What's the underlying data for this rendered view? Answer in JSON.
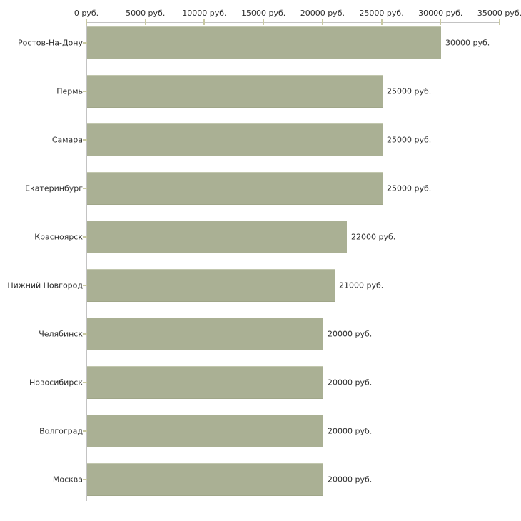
{
  "chart_data": {
    "type": "bar",
    "orientation": "horizontal",
    "title": "",
    "xlabel": "",
    "ylabel": "",
    "categories": [
      "Ростов-На-Дону",
      "Пермь",
      "Самара",
      "Екатеринбург",
      "Красноярск",
      "Нижний Новгород",
      "Челябинск",
      "Новосибирск",
      "Волгоград",
      "Москва"
    ],
    "values": [
      30000,
      25000,
      25000,
      25000,
      22000,
      21000,
      20000,
      20000,
      20000,
      20000
    ],
    "value_labels": [
      "30000 руб.",
      "25000 руб.",
      "25000 руб.",
      "25000 руб.",
      "22000 руб.",
      "21000 руб.",
      "20000 руб.",
      "20000 руб.",
      "20000 руб.",
      "20000 руб."
    ],
    "xlim": [
      0,
      35000
    ],
    "x_axis_position": "top",
    "x_ticks": {
      "values": [
        0,
        5000,
        10000,
        15000,
        20000,
        25000,
        30000,
        35000
      ],
      "labels": [
        "0 руб.",
        "5000 руб.",
        "10000 руб.",
        "15000 руб.",
        "20000 руб.",
        "25000 руб.",
        "30000 руб.",
        "35000 руб."
      ]
    },
    "grid": false,
    "legend": false,
    "unit": "руб.",
    "colors": {
      "bar_fill": "#aab094",
      "bar_edge_light": "#c2c7ae",
      "axis_line": "#c3c3c3",
      "tick_mark": "#c9c9a3",
      "text": "#2e2e2e",
      "background": "#ffffff"
    }
  }
}
